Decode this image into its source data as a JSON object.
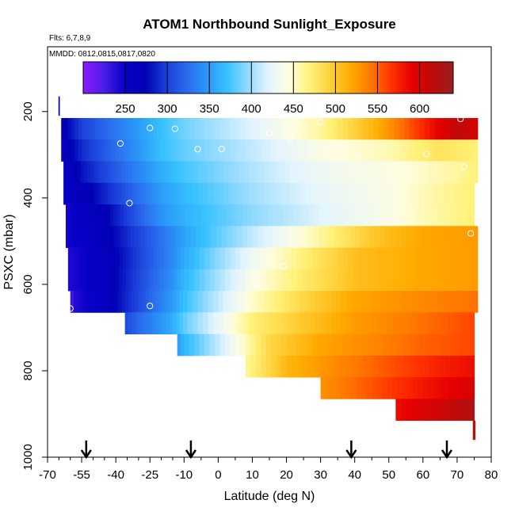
{
  "chart_data": {
    "type": "heatmap",
    "title": "ATOM1 Northbound Sunlight_Exposure",
    "flights_label": "Flts: 6,7,8,9",
    "dates_label": "MMDD: 0812,0815,0817,0820",
    "xlabel": "Latitude (deg N)",
    "ylabel": "PSXC (mbar)",
    "xlim": [
      -70,
      80
    ],
    "ylim": [
      1000,
      50
    ],
    "x_ticks": [
      -70,
      -55,
      -40,
      -25,
      -10,
      0,
      10,
      20,
      30,
      40,
      50,
      60,
      70,
      80
    ],
    "y_ticks": [
      200,
      400,
      600,
      800,
      1000
    ],
    "colorbar": {
      "min": 200,
      "max": 640,
      "ticks": [
        250,
        300,
        350,
        400,
        450,
        500,
        550,
        600
      ],
      "colors": [
        "#8c1aff",
        "#4b1de6",
        "#0a00c8",
        "#0000b4",
        "#1a3cd8",
        "#2a6aee",
        "#2a96f8",
        "#36c2ff",
        "#92daff",
        "#e2f4ff",
        "#fffde0",
        "#fff27a",
        "#ffd23c",
        "#ffab00",
        "#ff7800",
        "#ff3200",
        "#e60000",
        "#be0a0a",
        "#962020"
      ]
    },
    "rows": [
      {
        "p_top": 215,
        "p_bot": 265,
        "lat_start": -64,
        "lat_end": 76,
        "edges": [
          [
            -64,
            265
          ],
          [
            -55,
            300
          ],
          [
            -20,
            370
          ],
          [
            10,
            420
          ],
          [
            30,
            460
          ],
          [
            48,
            520
          ],
          [
            62,
            580
          ],
          [
            70,
            615
          ],
          [
            76,
            600
          ]
        ]
      },
      {
        "p_top": 265,
        "p_bot": 315,
        "lat_start": -64,
        "lat_end": 76,
        "edges": [
          [
            -64,
            255
          ],
          [
            -55,
            290
          ],
          [
            -20,
            370
          ],
          [
            10,
            410
          ],
          [
            30,
            440
          ],
          [
            50,
            455
          ],
          [
            65,
            480
          ],
          [
            76,
            470
          ]
        ]
      },
      {
        "p_top": 315,
        "p_bot": 365,
        "lat_start": -63,
        "lat_end": 76,
        "edges": [
          [
            -63,
            250
          ],
          [
            -55,
            280
          ],
          [
            -20,
            360
          ],
          [
            10,
            405
          ],
          [
            30,
            430
          ],
          [
            55,
            445
          ],
          [
            70,
            460
          ],
          [
            76,
            470
          ]
        ]
      },
      {
        "p_top": 365,
        "p_bot": 415,
        "lat_start": -63,
        "lat_end": 75,
        "edges": [
          [
            -63,
            250
          ],
          [
            -50,
            275
          ],
          [
            -20,
            350
          ],
          [
            10,
            400
          ],
          [
            30,
            425
          ],
          [
            50,
            440
          ],
          [
            65,
            460
          ],
          [
            75,
            470
          ]
        ]
      },
      {
        "p_top": 415,
        "p_bot": 465,
        "lat_start": -62,
        "lat_end": 75,
        "edges": [
          [
            -62,
            245
          ],
          [
            -45,
            270
          ],
          [
            -20,
            345
          ],
          [
            10,
            395
          ],
          [
            30,
            420
          ],
          [
            50,
            440
          ],
          [
            65,
            460
          ],
          [
            75,
            470
          ]
        ]
      },
      {
        "p_top": 465,
        "p_bot": 515,
        "lat_start": -62,
        "lat_end": 76,
        "edges": [
          [
            -62,
            245
          ],
          [
            -45,
            265
          ],
          [
            -15,
            340
          ],
          [
            10,
            410
          ],
          [
            30,
            460
          ],
          [
            45,
            500
          ],
          [
            60,
            520
          ],
          [
            76,
            525
          ]
        ]
      },
      {
        "p_top": 515,
        "p_bot": 565,
        "lat_start": -61,
        "lat_end": 76,
        "edges": [
          [
            -61,
            240
          ],
          [
            -45,
            260
          ],
          [
            -15,
            340
          ],
          [
            10,
            430
          ],
          [
            25,
            470
          ],
          [
            40,
            505
          ],
          [
            60,
            520
          ],
          [
            76,
            525
          ]
        ]
      },
      {
        "p_top": 565,
        "p_bot": 615,
        "lat_start": -61,
        "lat_end": 76,
        "edges": [
          [
            -61,
            240
          ],
          [
            -45,
            260
          ],
          [
            -15,
            345
          ],
          [
            10,
            440
          ],
          [
            25,
            475
          ],
          [
            40,
            505
          ],
          [
            60,
            520
          ],
          [
            76,
            525
          ]
        ]
      },
      {
        "p_top": 615,
        "p_bot": 665,
        "lat_start": -60,
        "lat_end": 76,
        "edges": [
          [
            -60,
            225
          ],
          [
            -58,
            240
          ],
          [
            -45,
            260
          ],
          [
            -15,
            350
          ],
          [
            10,
            450
          ],
          [
            25,
            490
          ],
          [
            40,
            520
          ],
          [
            60,
            535
          ],
          [
            76,
            545
          ]
        ]
      },
      {
        "p_top": 665,
        "p_bot": 715,
        "lat_start": -36,
        "lat_end": 75,
        "edges": [
          [
            -36,
            305
          ],
          [
            -15,
            360
          ],
          [
            10,
            470
          ],
          [
            25,
            500
          ],
          [
            40,
            525
          ],
          [
            60,
            545
          ],
          [
            75,
            560
          ]
        ]
      },
      {
        "p_top": 715,
        "p_bot": 765,
        "lat_start": -13,
        "lat_end": 75,
        "edges": [
          [
            -13,
            350
          ],
          [
            0,
            410
          ],
          [
            15,
            490
          ],
          [
            30,
            520
          ],
          [
            45,
            535
          ],
          [
            60,
            550
          ],
          [
            75,
            560
          ]
        ]
      },
      {
        "p_top": 765,
        "p_bot": 815,
        "lat_start": 8,
        "lat_end": 75,
        "edges": [
          [
            8,
            460
          ],
          [
            20,
            510
          ],
          [
            35,
            535
          ],
          [
            50,
            555
          ],
          [
            65,
            575
          ],
          [
            75,
            585
          ]
        ]
      },
      {
        "p_top": 815,
        "p_bot": 865,
        "lat_start": 30,
        "lat_end": 75,
        "edges": [
          [
            30,
            530
          ],
          [
            45,
            555
          ],
          [
            60,
            580
          ],
          [
            75,
            600
          ]
        ]
      },
      {
        "p_top": 865,
        "p_bot": 915,
        "lat_start": 52,
        "lat_end": 75,
        "edges": [
          [
            52,
            585
          ],
          [
            65,
            605
          ],
          [
            75,
            625
          ]
        ]
      }
    ],
    "extra_cells": [
      {
        "lat0": -65.2,
        "lat1": -64.6,
        "p0": 165,
        "p1": 210,
        "value": 265
      },
      {
        "lat0": 74.6,
        "lat1": 75.4,
        "p0": 915,
        "p1": 960,
        "value": 630
      }
    ],
    "points": [
      {
        "x": -25,
        "y": 238
      },
      {
        "x": -14,
        "y": 240
      },
      {
        "x": 15,
        "y": 250
      },
      {
        "x": 30,
        "y": 225
      },
      {
        "x": -38,
        "y": 274
      },
      {
        "x": -6,
        "y": 287
      },
      {
        "x": 1,
        "y": 287
      },
      {
        "x": 21,
        "y": 262
      },
      {
        "x": 41,
        "y": 300
      },
      {
        "x": 61,
        "y": 298
      },
      {
        "x": 71,
        "y": 217
      },
      {
        "x": 72,
        "y": 328
      },
      {
        "x": -34,
        "y": 412
      },
      {
        "x": 74,
        "y": 482
      },
      {
        "x": 19,
        "y": 558
      },
      {
        "x": -25,
        "y": 650
      },
      {
        "x": -60,
        "y": 656
      }
    ],
    "arrows": [
      -53,
      -8,
      39,
      67
    ],
    "grid": false
  }
}
